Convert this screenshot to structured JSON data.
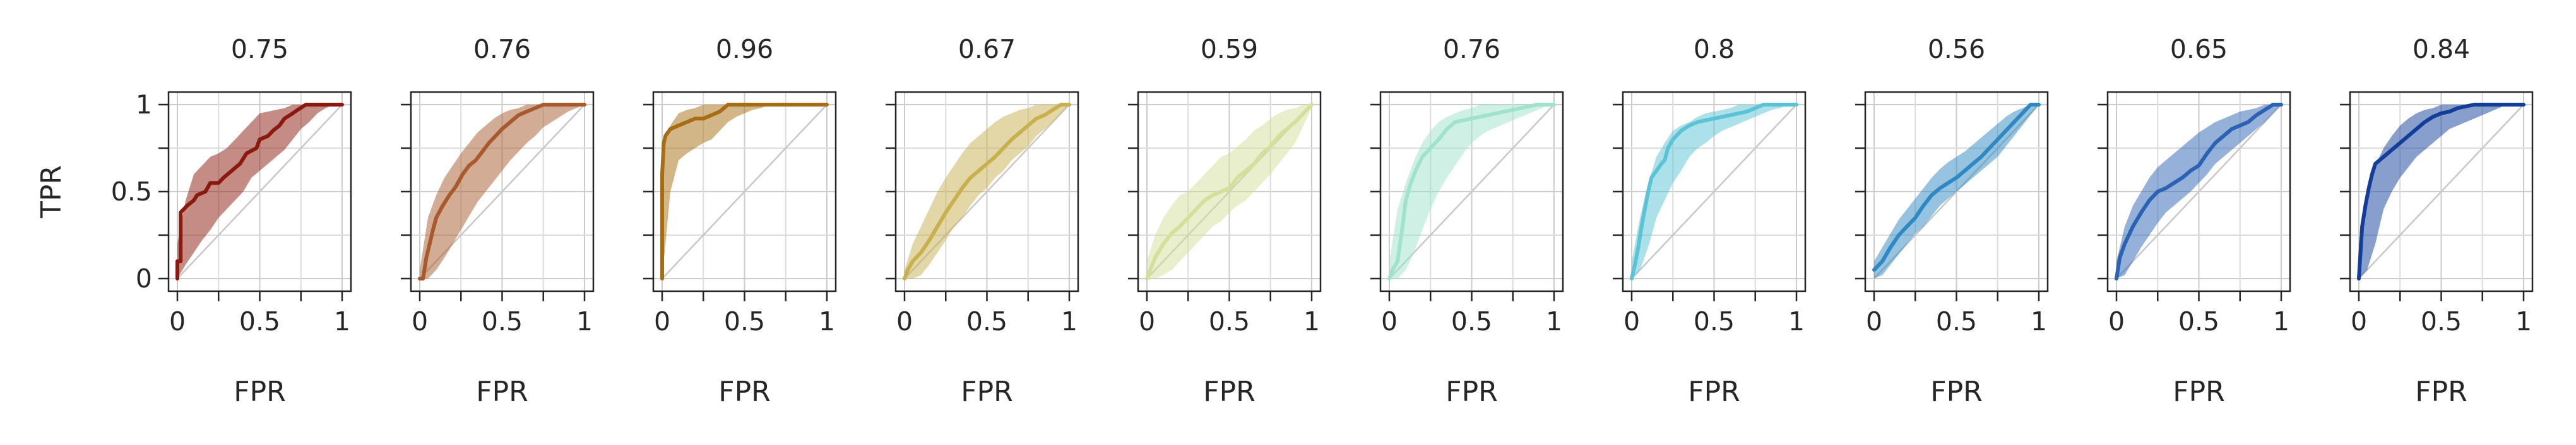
{
  "chart_data": {
    "type": "line",
    "panel_count": 10,
    "xlabel": "FPR",
    "ylabel": "TPR",
    "xlim": [
      0,
      1
    ],
    "ylim": [
      0,
      1
    ],
    "xticks": [
      0,
      0.5,
      1
    ],
    "xtick_labels": [
      "0",
      "0.5",
      "1"
    ],
    "yticks": [
      0,
      0.5,
      1
    ],
    "ytick_labels": [
      "0",
      "0.5",
      "1"
    ],
    "minor_ticks": [
      0.25,
      0.75
    ],
    "grid": true,
    "diagonal_reference": true,
    "panels": [
      {
        "title": "0.75",
        "color": "#8b1a0e",
        "curve": {
          "x": [
            0,
            0,
            0.02,
            0.02,
            0.06,
            0.1,
            0.12,
            0.17,
            0.2,
            0.25,
            0.28,
            0.33,
            0.38,
            0.42,
            0.48,
            0.5,
            0.55,
            0.58,
            0.62,
            0.65,
            0.7,
            0.73,
            0.78,
            0.82,
            0.88,
            0.95,
            1
          ],
          "y": [
            0,
            0.1,
            0.1,
            0.38,
            0.42,
            0.45,
            0.48,
            0.5,
            0.55,
            0.55,
            0.58,
            0.62,
            0.66,
            0.72,
            0.75,
            0.8,
            0.82,
            0.85,
            0.88,
            0.92,
            0.95,
            0.97,
            1,
            1,
            1,
            1,
            1
          ]
        },
        "band_upper": [
          0.2,
          0.45,
          0.6,
          0.65,
          0.7,
          0.72,
          0.75,
          0.8,
          0.85,
          0.9,
          0.95,
          0.96,
          0.97,
          0.98,
          1,
          1,
          1,
          1,
          1,
          1,
          1
        ],
        "band_lower": [
          0,
          0.08,
          0.15,
          0.22,
          0.28,
          0.35,
          0.4,
          0.45,
          0.5,
          0.58,
          0.62,
          0.66,
          0.7,
          0.74,
          0.8,
          0.86,
          0.9,
          0.95,
          0.98,
          1,
          1
        ]
      },
      {
        "title": "0.76",
        "color": "#a85a2e",
        "curve": {
          "x": [
            0,
            0.02,
            0.04,
            0.06,
            0.08,
            0.1,
            0.14,
            0.18,
            0.22,
            0.26,
            0.3,
            0.34,
            0.38,
            0.42,
            0.46,
            0.5,
            0.55,
            0.6,
            0.65,
            0.7,
            0.75,
            0.8,
            1
          ],
          "y": [
            0,
            0,
            0.12,
            0.2,
            0.28,
            0.35,
            0.42,
            0.48,
            0.53,
            0.6,
            0.65,
            0.68,
            0.73,
            0.78,
            0.82,
            0.86,
            0.9,
            0.94,
            0.96,
            0.98,
            1,
            1,
            1
          ]
        },
        "band_upper": [
          0.05,
          0.35,
          0.48,
          0.58,
          0.65,
          0.72,
          0.78,
          0.84,
          0.88,
          0.92,
          0.95,
          0.97,
          0.98,
          1,
          1,
          1,
          1,
          1,
          1,
          1,
          1
        ],
        "band_lower": [
          0,
          0,
          0.05,
          0.12,
          0.2,
          0.28,
          0.36,
          0.44,
          0.5,
          0.56,
          0.62,
          0.68,
          0.73,
          0.78,
          0.82,
          0.87,
          0.9,
          0.93,
          0.96,
          0.98,
          1
        ]
      },
      {
        "title": "0.96",
        "color": "#a66d12",
        "curve": {
          "x": [
            0,
            0,
            0.01,
            0.02,
            0.05,
            0.1,
            0.15,
            0.2,
            0.25,
            0.3,
            0.35,
            0.4,
            0.5,
            0.6,
            0.8,
            1
          ],
          "y": [
            0,
            0.6,
            0.78,
            0.82,
            0.86,
            0.88,
            0.9,
            0.92,
            0.92,
            0.94,
            0.96,
            1,
            1,
            1,
            1,
            1
          ]
        },
        "band_upper": [
          0.75,
          0.88,
          0.95,
          0.97,
          0.98,
          1,
          1,
          1,
          1,
          1,
          1,
          1,
          1,
          1,
          1,
          1,
          1,
          1,
          1,
          1,
          1
        ],
        "band_lower": [
          0,
          0.5,
          0.68,
          0.72,
          0.75,
          0.78,
          0.8,
          0.85,
          0.9,
          0.93,
          0.95,
          0.97,
          0.98,
          1,
          1,
          1,
          1,
          1,
          1,
          1,
          1
        ]
      },
      {
        "title": "0.67",
        "color": "#c9b04f",
        "curve": {
          "x": [
            0,
            0.02,
            0.05,
            0.1,
            0.15,
            0.2,
            0.25,
            0.3,
            0.35,
            0.4,
            0.45,
            0.5,
            0.55,
            0.6,
            0.65,
            0.7,
            0.75,
            0.8,
            0.85,
            0.9,
            0.95,
            1
          ],
          "y": [
            0,
            0.05,
            0.1,
            0.15,
            0.22,
            0.3,
            0.38,
            0.45,
            0.52,
            0.58,
            0.62,
            0.66,
            0.7,
            0.75,
            0.8,
            0.84,
            0.88,
            0.92,
            0.94,
            0.97,
            1,
            1
          ]
        },
        "band_upper": [
          0.05,
          0.2,
          0.3,
          0.4,
          0.5,
          0.58,
          0.65,
          0.72,
          0.78,
          0.82,
          0.86,
          0.9,
          0.93,
          0.95,
          0.97,
          0.98,
          1,
          1,
          1,
          1,
          1
        ],
        "band_lower": [
          0,
          0,
          0.02,
          0.08,
          0.15,
          0.22,
          0.3,
          0.35,
          0.42,
          0.48,
          0.52,
          0.58,
          0.62,
          0.68,
          0.72,
          0.76,
          0.82,
          0.86,
          0.9,
          0.95,
          1
        ]
      },
      {
        "title": "0.59",
        "color": "#d3e09a",
        "curve": {
          "x": [
            0,
            0.02,
            0.05,
            0.1,
            0.15,
            0.2,
            0.25,
            0.3,
            0.35,
            0.4,
            0.45,
            0.5,
            0.55,
            0.6,
            0.65,
            0.7,
            0.75,
            0.8,
            0.85,
            0.9,
            0.95,
            1
          ],
          "y": [
            0,
            0.05,
            0.12,
            0.2,
            0.26,
            0.3,
            0.35,
            0.4,
            0.45,
            0.48,
            0.5,
            0.52,
            0.58,
            0.62,
            0.66,
            0.72,
            0.76,
            0.82,
            0.86,
            0.9,
            0.95,
            1
          ]
        },
        "band_upper": [
          0.1,
          0.25,
          0.35,
          0.42,
          0.48,
          0.5,
          0.55,
          0.6,
          0.65,
          0.7,
          0.72,
          0.76,
          0.8,
          0.85,
          0.88,
          0.92,
          0.95,
          0.97,
          0.98,
          1,
          1
        ],
        "band_lower": [
          0,
          0,
          0.02,
          0.05,
          0.1,
          0.15,
          0.2,
          0.25,
          0.3,
          0.33,
          0.38,
          0.42,
          0.45,
          0.5,
          0.55,
          0.6,
          0.66,
          0.72,
          0.78,
          0.88,
          0.98
        ]
      },
      {
        "title": "0.76",
        "color": "#9fe3cc",
        "curve": {
          "x": [
            0,
            0.02,
            0.05,
            0.08,
            0.1,
            0.13,
            0.16,
            0.2,
            0.25,
            0.3,
            0.35,
            0.4,
            0.5,
            0.6,
            0.7,
            0.8,
            0.9,
            1
          ],
          "y": [
            0,
            0.05,
            0.1,
            0.3,
            0.45,
            0.55,
            0.62,
            0.7,
            0.75,
            0.8,
            0.86,
            0.9,
            0.92,
            0.94,
            0.96,
            0.98,
            1,
            1
          ]
        },
        "band_upper": [
          0.1,
          0.4,
          0.55,
          0.68,
          0.78,
          0.85,
          0.9,
          0.93,
          0.95,
          0.97,
          0.98,
          1,
          1,
          1,
          1,
          1,
          1,
          1,
          1,
          1,
          1
        ],
        "band_lower": [
          0,
          0,
          0.05,
          0.15,
          0.28,
          0.4,
          0.5,
          0.58,
          0.65,
          0.72,
          0.78,
          0.82,
          0.85,
          0.87,
          0.89,
          0.91,
          0.93,
          0.95,
          0.97,
          0.99,
          1
        ]
      },
      {
        "title": "0.8",
        "color": "#5bc3d6",
        "curve": {
          "x": [
            0,
            0.02,
            0.04,
            0.06,
            0.08,
            0.1,
            0.12,
            0.15,
            0.18,
            0.2,
            0.22,
            0.25,
            0.3,
            0.35,
            0.4,
            0.5,
            0.6,
            0.7,
            0.8,
            0.9,
            1
          ],
          "y": [
            0,
            0.08,
            0.18,
            0.3,
            0.4,
            0.5,
            0.58,
            0.62,
            0.66,
            0.68,
            0.75,
            0.8,
            0.85,
            0.88,
            0.9,
            0.92,
            0.94,
            0.96,
            1,
            1,
            1
          ]
        },
        "band_upper": [
          0.1,
          0.35,
          0.55,
          0.7,
          0.78,
          0.85,
          0.88,
          0.9,
          0.93,
          0.95,
          0.96,
          0.97,
          0.98,
          1,
          1,
          1,
          1,
          1,
          1,
          1,
          1
        ],
        "band_lower": [
          0,
          0.05,
          0.18,
          0.35,
          0.45,
          0.55,
          0.62,
          0.7,
          0.75,
          0.78,
          0.82,
          0.85,
          0.87,
          0.89,
          0.91,
          0.93,
          0.95,
          0.97,
          0.98,
          1,
          1
        ]
      },
      {
        "title": "0.56",
        "color": "#2e88c2",
        "curve": {
          "x": [
            0,
            0.05,
            0.1,
            0.15,
            0.2,
            0.25,
            0.3,
            0.35,
            0.4,
            0.45,
            0.5,
            0.55,
            0.6,
            0.65,
            0.7,
            0.75,
            0.8,
            0.85,
            0.9,
            0.95,
            1
          ],
          "y": [
            0.05,
            0.1,
            0.18,
            0.25,
            0.3,
            0.35,
            0.42,
            0.48,
            0.52,
            0.55,
            0.58,
            0.62,
            0.66,
            0.7,
            0.75,
            0.8,
            0.85,
            0.9,
            0.95,
            1,
            1
          ]
        },
        "band_upper": [
          0.1,
          0.18,
          0.26,
          0.34,
          0.4,
          0.46,
          0.52,
          0.58,
          0.63,
          0.67,
          0.7,
          0.73,
          0.77,
          0.81,
          0.85,
          0.89,
          0.93,
          0.96,
          0.98,
          1,
          1
        ],
        "band_lower": [
          0,
          0.02,
          0.08,
          0.14,
          0.2,
          0.26,
          0.3,
          0.36,
          0.42,
          0.46,
          0.5,
          0.54,
          0.58,
          0.62,
          0.66,
          0.7,
          0.76,
          0.82,
          0.88,
          0.94,
          1
        ]
      },
      {
        "title": "0.65",
        "color": "#2c62b4",
        "curve": {
          "x": [
            0,
            0.02,
            0.05,
            0.1,
            0.15,
            0.2,
            0.25,
            0.3,
            0.35,
            0.4,
            0.45,
            0.5,
            0.55,
            0.6,
            0.65,
            0.7,
            0.75,
            0.8,
            0.85,
            0.9,
            0.95,
            1
          ],
          "y": [
            0,
            0.12,
            0.2,
            0.3,
            0.38,
            0.45,
            0.5,
            0.52,
            0.55,
            0.58,
            0.62,
            0.65,
            0.72,
            0.78,
            0.82,
            0.86,
            0.88,
            0.9,
            0.94,
            0.97,
            1,
            1
          ]
        },
        "band_upper": [
          0.1,
          0.3,
          0.42,
          0.5,
          0.58,
          0.64,
          0.68,
          0.72,
          0.76,
          0.8,
          0.84,
          0.87,
          0.9,
          0.92,
          0.94,
          0.96,
          0.97,
          0.98,
          1,
          1,
          1
        ],
        "band_lower": [
          0,
          0.02,
          0.1,
          0.18,
          0.25,
          0.32,
          0.38,
          0.42,
          0.46,
          0.5,
          0.55,
          0.6,
          0.66,
          0.7,
          0.74,
          0.78,
          0.82,
          0.86,
          0.9,
          0.95,
          1
        ]
      },
      {
        "title": "0.84",
        "color": "#123d99",
        "curve": {
          "x": [
            0,
            0.01,
            0.02,
            0.04,
            0.06,
            0.08,
            0.1,
            0.15,
            0.2,
            0.25,
            0.3,
            0.35,
            0.4,
            0.45,
            0.5,
            0.55,
            0.6,
            0.7,
            0.8,
            0.9,
            1
          ],
          "y": [
            0,
            0.15,
            0.3,
            0.42,
            0.52,
            0.6,
            0.66,
            0.7,
            0.74,
            0.78,
            0.82,
            0.86,
            0.9,
            0.93,
            0.95,
            0.96,
            0.98,
            1,
            1,
            1,
            1
          ]
        },
        "band_upper": [
          0.2,
          0.5,
          0.65,
          0.75,
          0.82,
          0.88,
          0.92,
          0.95,
          0.97,
          0.98,
          1,
          1,
          1,
          1,
          1,
          1,
          1,
          1,
          1,
          1,
          1
        ],
        "band_lower": [
          0,
          0.05,
          0.2,
          0.4,
          0.5,
          0.58,
          0.64,
          0.7,
          0.74,
          0.78,
          0.82,
          0.86,
          0.88,
          0.9,
          0.92,
          0.94,
          0.96,
          0.98,
          1,
          1,
          1
        ]
      }
    ]
  }
}
